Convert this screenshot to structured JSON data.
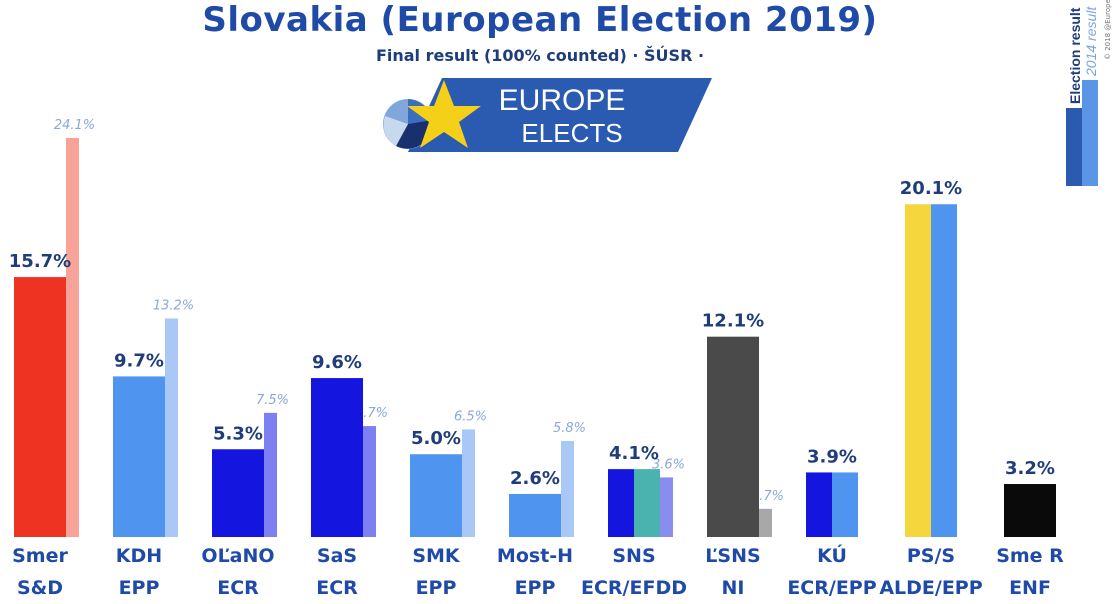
{
  "header": {
    "title": "Slovakia (European Election 2019)",
    "subtitle": "Final result (100% counted) · ŠÚSR ·"
  },
  "brand": {
    "line1": "EUROPE",
    "line2": "ELECTS",
    "copyright": "© 2018 @EuropeElects"
  },
  "legend": {
    "current": "Election result",
    "previous": "2014 result"
  },
  "colors": {
    "title": "#1f4aa8",
    "previous_default": "#a9c8f5"
  },
  "chart_data": {
    "type": "bar",
    "ylim": [
      0,
      27
    ],
    "categories": [
      {
        "party": "Smer",
        "group": "S&D",
        "value": 15.7,
        "value_label": "15.7%",
        "previous": 24.1,
        "previous_label": "24.1%",
        "color": "#ee3322",
        "previous_color": "#f7a397"
      },
      {
        "party": "KDH",
        "group": "EPP",
        "value": 9.7,
        "value_label": "9.7%",
        "previous": 13.2,
        "previous_label": "13.2%",
        "color": "#4f95f0",
        "previous_color": "#a9c8f5"
      },
      {
        "party": "OĽaNO",
        "group": "ECR",
        "value": 5.3,
        "value_label": "5.3%",
        "previous": 7.5,
        "previous_label": "7.5%",
        "color": "#1515e0",
        "previous_color": "#7c80f0"
      },
      {
        "party": "SaS",
        "group": "ECR",
        "value": 9.6,
        "value_label": "9.6%",
        "previous": 6.7,
        "previous_label": "6.7%",
        "color": "#1515e0",
        "previous_color": "#7c80f0"
      },
      {
        "party": "SMK",
        "group": "EPP",
        "value": 5.0,
        "value_label": "5.0%",
        "previous": 6.5,
        "previous_label": "6.5%",
        "color": "#4f95f0",
        "previous_color": "#a9c8f5"
      },
      {
        "party": "Most-H",
        "group": "EPP",
        "value": 2.6,
        "value_label": "2.6%",
        "previous": 5.8,
        "previous_label": "5.8%",
        "color": "#4f95f0",
        "previous_color": "#a9c8f5"
      },
      {
        "party": "SNS",
        "group": "ECR/EFDD",
        "value": 4.1,
        "value_label": "4.1%",
        "previous": 3.6,
        "previous_label": "3.6%",
        "color": "#1515e0",
        "color2": "#4ab3b0",
        "previous_color": "#8b8cf0"
      },
      {
        "party": "ĽSNS",
        "group": "NI",
        "value": 12.1,
        "value_label": "12.1%",
        "previous": 1.7,
        "previous_label": "1.7%",
        "color": "#4a4a4a",
        "previous_color": "#a8a8a8"
      },
      {
        "party": "KÚ",
        "group": "ECR/EPP",
        "value": 3.9,
        "value_label": "3.9%",
        "previous": null,
        "previous_label": "",
        "color": "#1515e0",
        "color2": "#4f95f0",
        "previous_color": ""
      },
      {
        "party": "PS/S",
        "group": "ALDE/EPP",
        "value": 20.1,
        "value_label": "20.1%",
        "previous": null,
        "previous_label": "",
        "color": "#f5d63d",
        "color2": "#4f95f0",
        "previous_color": ""
      },
      {
        "party": "Sme R",
        "group": "ENF",
        "value": 3.2,
        "value_label": "3.2%",
        "previous": null,
        "previous_label": "",
        "color": "#0a0a0a",
        "previous_color": ""
      }
    ]
  }
}
